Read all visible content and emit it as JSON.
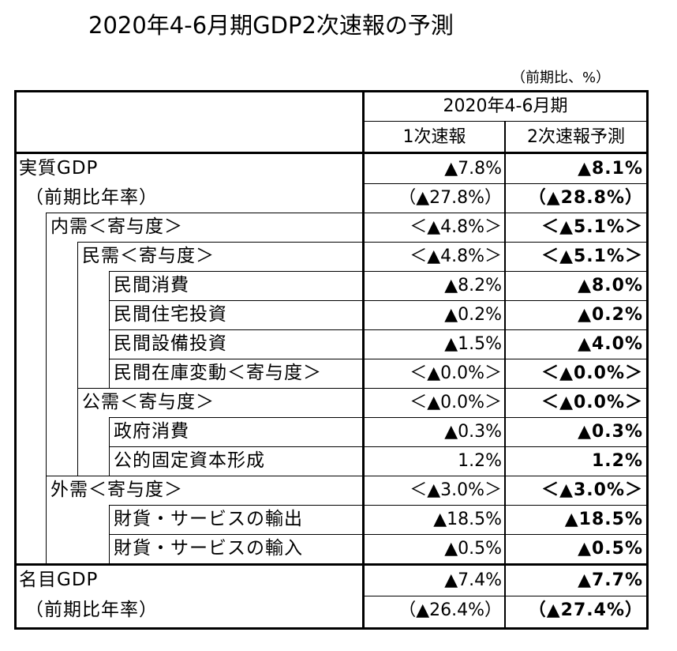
{
  "title": "2020年4-6月期GDP2次速報の予測",
  "unit_note": "（前期比、%）",
  "header": {
    "period": "2020年4-6月期",
    "col1": "1次速報",
    "col2": "2次速報予測"
  },
  "rows": [
    {
      "label": "実質GDP",
      "first": "▲7.8%",
      "second": "▲8.1%"
    },
    {
      "label": "（前期比年率）",
      "first": "（▲27.8%）",
      "second": "（▲28.8%）"
    },
    {
      "label": "内需＜寄与度＞",
      "first": "＜▲4.8%＞",
      "second": "＜▲5.1%＞"
    },
    {
      "label": "民需＜寄与度＞",
      "first": "＜▲4.8%＞",
      "second": "＜▲5.1%＞"
    },
    {
      "label": "民間消費",
      "first": "▲8.2%",
      "second": "▲8.0%"
    },
    {
      "label": "民間住宅投資",
      "first": "▲0.2%",
      "second": "▲0.2%"
    },
    {
      "label": "民間設備投資",
      "first": "▲1.5%",
      "second": "▲4.0%"
    },
    {
      "label": "民間在庫変動＜寄与度＞",
      "first": "＜▲0.0%＞",
      "second": "＜▲0.0%＞"
    },
    {
      "label": "公需＜寄与度＞",
      "first": "＜▲0.0%＞",
      "second": "＜▲0.0%＞"
    },
    {
      "label": "政府消費",
      "first": "▲0.3%",
      "second": "▲0.3%"
    },
    {
      "label": "公的固定資本形成",
      "first": "1.2%",
      "second": "1.2%"
    },
    {
      "label": "外需＜寄与度＞",
      "first": "＜▲3.0%＞",
      "second": "＜▲3.0%＞"
    },
    {
      "label": "財貨・サービスの輸出",
      "first": "▲18.5%",
      "second": "▲18.5%"
    },
    {
      "label": "財貨・サービスの輸入",
      "first": "▲0.5%",
      "second": "▲0.5%"
    },
    {
      "label": "名目GDP",
      "first": "▲7.4%",
      "second": "▲7.7%"
    },
    {
      "label": "（前期比年率）",
      "first": "（▲26.4%）",
      "second": "（▲27.4%）"
    }
  ]
}
